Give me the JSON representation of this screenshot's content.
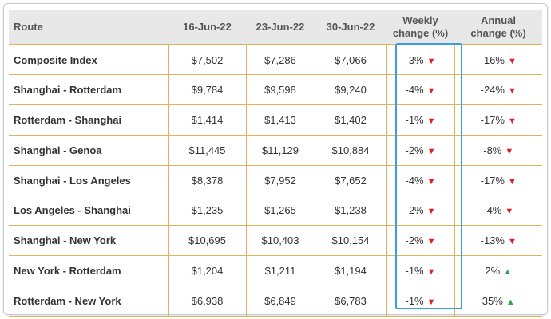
{
  "chart_data": {
    "type": "table",
    "columns": [
      "Route",
      "16-Jun-22",
      "23-Jun-22",
      "30-Jun-22",
      "Weekly change (%)",
      "Annual change (%)"
    ],
    "rows": [
      {
        "route": "Composite Index",
        "v1": "$7,502",
        "v2": "$7,286",
        "v3": "$7,066",
        "weekly": "-3%",
        "weekly_dir": "down",
        "annual": "-16%",
        "annual_dir": "down"
      },
      {
        "route": "Shanghai - Rotterdam",
        "v1": "$9,784",
        "v2": "$9,598",
        "v3": "$9,240",
        "weekly": "-4%",
        "weekly_dir": "down",
        "annual": "-24%",
        "annual_dir": "down"
      },
      {
        "route": "Rotterdam - Shanghai",
        "v1": "$1,414",
        "v2": "$1,413",
        "v3": "$1,402",
        "weekly": "-1%",
        "weekly_dir": "down",
        "annual": "-17%",
        "annual_dir": "down"
      },
      {
        "route": "Shanghai - Genoa",
        "v1": "$11,445",
        "v2": "$11,129",
        "v3": "$10,884",
        "weekly": "-2%",
        "weekly_dir": "down",
        "annual": "-8%",
        "annual_dir": "down"
      },
      {
        "route": "Shanghai - Los Angeles",
        "v1": "$8,378",
        "v2": "$7,952",
        "v3": "$7,652",
        "weekly": "-4%",
        "weekly_dir": "down",
        "annual": "-17%",
        "annual_dir": "down"
      },
      {
        "route": "Los Angeles - Shanghai",
        "v1": "$1,235",
        "v2": "$1,265",
        "v3": "$1,238",
        "weekly": "-2%",
        "weekly_dir": "down",
        "annual": "-4%",
        "annual_dir": "down"
      },
      {
        "route": "Shanghai - New York",
        "v1": "$10,695",
        "v2": "$10,403",
        "v3": "$10,154",
        "weekly": "-2%",
        "weekly_dir": "down",
        "annual": "-13%",
        "annual_dir": "down"
      },
      {
        "route": "New York - Rotterdam",
        "v1": "$1,204",
        "v2": "$1,211",
        "v3": "$1,194",
        "weekly": "-1%",
        "weekly_dir": "down",
        "annual": "2%",
        "annual_dir": "up"
      },
      {
        "route": "Rotterdam - New York",
        "v1": "$6,938",
        "v2": "$6,849",
        "v3": "$6,783",
        "weekly": "-1%",
        "weekly_dir": "down",
        "annual": "35%",
        "annual_dir": "up"
      }
    ],
    "highlighted_column": "Weekly change (%)"
  },
  "header": {
    "route": "Route",
    "d1": "16-Jun-22",
    "d2": "23-Jun-22",
    "d3": "30-Jun-22",
    "weekly_l1": "Weekly",
    "weekly_l2": "change (%)",
    "annual_l1": "Annual",
    "annual_l2": "change (%)"
  },
  "colors": {
    "header_bg": "#e8e8e8",
    "row_border": "#e0b25a",
    "down": "#e02020",
    "up": "#2aa84a",
    "highlight": "#3a9fe0"
  },
  "icons": {
    "down": "down-triangle-icon",
    "up": "up-triangle-icon"
  }
}
